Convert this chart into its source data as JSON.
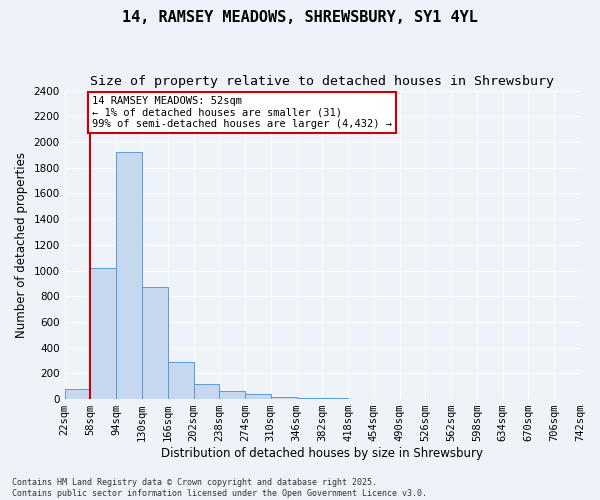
{
  "title": "14, RAMSEY MEADOWS, SHREWSBURY, SY1 4YL",
  "subtitle": "Size of property relative to detached houses in Shrewsbury",
  "xlabel": "Distribution of detached houses by size in Shrewsbury",
  "ylabel": "Number of detached properties",
  "footer_line1": "Contains HM Land Registry data © Crown copyright and database right 2025.",
  "footer_line2": "Contains public sector information licensed under the Open Government Licence v3.0.",
  "tick_labels": [
    "22sqm",
    "58sqm",
    "94sqm",
    "130sqm",
    "166sqm",
    "202sqm",
    "238sqm",
    "274sqm",
    "310sqm",
    "346sqm",
    "382sqm",
    "418sqm",
    "454sqm",
    "490sqm",
    "526sqm",
    "562sqm",
    "598sqm",
    "634sqm",
    "670sqm",
    "706sqm",
    "742sqm"
  ],
  "bar_values": [
    80,
    1020,
    1920,
    870,
    290,
    115,
    60,
    40,
    20,
    10,
    5,
    3,
    2,
    1,
    0,
    0,
    0,
    0,
    0,
    0
  ],
  "bar_color": "#c5d8f0",
  "bar_edge_color": "#5b9bd5",
  "vline_x": 0.5,
  "ylim": [
    0,
    2400
  ],
  "yticks": [
    0,
    200,
    400,
    600,
    800,
    1000,
    1200,
    1400,
    1600,
    1800,
    2000,
    2200,
    2400
  ],
  "annotation_title": "14 RAMSEY MEADOWS: 52sqm",
  "annotation_line1": "← 1% of detached houses are smaller (31)",
  "annotation_line2": "99% of semi-detached houses are larger (4,432) →",
  "annotation_box_facecolor": "#ffffff",
  "annotation_box_edgecolor": "#cc0000",
  "vline_color": "#cc0000",
  "background_color": "#eef2f9",
  "grid_color": "#ffffff",
  "title_fontsize": 11,
  "subtitle_fontsize": 9.5,
  "axis_label_fontsize": 8.5,
  "tick_fontsize": 7.5,
  "annotation_fontsize": 7.5,
  "footer_fontsize": 6
}
